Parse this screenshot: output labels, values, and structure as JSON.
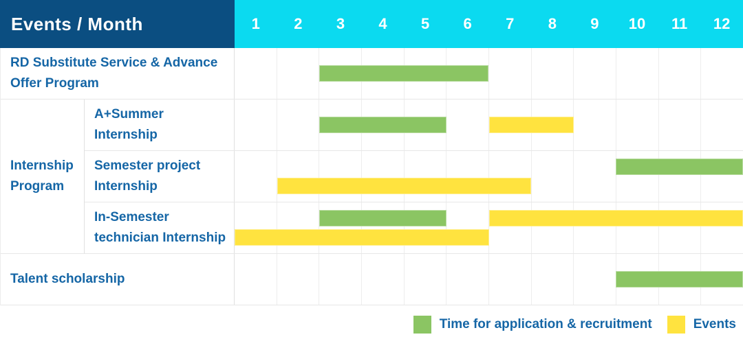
{
  "header": {
    "title": "Events / Month",
    "months": [
      "1",
      "2",
      "3",
      "4",
      "5",
      "6",
      "7",
      "8",
      "9",
      "10",
      "11",
      "12"
    ]
  },
  "colors": {
    "header_navy": "#0B4E81",
    "header_cyan": "#0BDAF0",
    "application_green": "#8BC563",
    "events_yellow": "#FFE33F",
    "label_blue": "#1566A6",
    "grid_line": "#ededed"
  },
  "legend": {
    "items": [
      {
        "series": "application",
        "label": "Time for application & recruitment",
        "color": "#8BC563"
      },
      {
        "series": "events",
        "label": "Events",
        "color": "#FFE33F"
      }
    ]
  },
  "chart_data": {
    "type": "bar",
    "subtype": "gantt",
    "title": "Events / Month",
    "xlabel": "Month",
    "x_categories": [
      1,
      2,
      3,
      4,
      5,
      6,
      7,
      8,
      9,
      10,
      11,
      12
    ],
    "x_range": [
      1,
      12
    ],
    "grid": true,
    "legend_position": "bottom-right",
    "series_names": {
      "application": "Time for application & recruitment",
      "events": "Events"
    },
    "rows": [
      {
        "group": "",
        "label": "RD Substitute Service & Advance Offer Program",
        "bars": [
          {
            "series": "application",
            "start_month": 3,
            "end_month": 6,
            "track": "center"
          }
        ]
      },
      {
        "group": "Internship Program",
        "label": "A+Summer Internship",
        "bars": [
          {
            "series": "application",
            "start_month": 3,
            "end_month": 5,
            "track": "center"
          },
          {
            "series": "events",
            "start_month": 7,
            "end_month": 8,
            "track": "center"
          }
        ]
      },
      {
        "group": "Internship Program",
        "label": "Semester project Internship",
        "bars": [
          {
            "series": "application",
            "start_month": 10,
            "end_month": 12,
            "track": "top"
          },
          {
            "series": "events",
            "start_month": 2,
            "end_month": 7,
            "track": "bottom"
          }
        ]
      },
      {
        "group": "Internship Program",
        "label": "In-Semester technician Internship",
        "bars": [
          {
            "series": "application",
            "start_month": 3,
            "end_month": 5,
            "track": "top"
          },
          {
            "series": "events",
            "start_month": 7,
            "end_month": 12,
            "track": "top"
          },
          {
            "series": "events",
            "start_month": 1,
            "end_month": 6,
            "track": "bottom"
          }
        ]
      },
      {
        "group": "",
        "label": "Talent scholarship",
        "bars": [
          {
            "series": "application",
            "start_month": 10,
            "end_month": 12,
            "track": "center"
          }
        ]
      }
    ]
  }
}
